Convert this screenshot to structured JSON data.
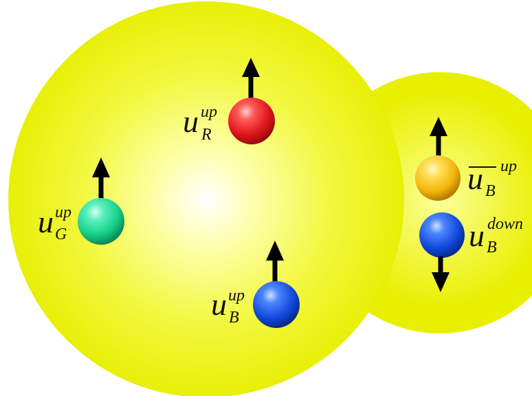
{
  "colors": {
    "sphere_edge": "#eef200",
    "sphere_center": "#ffffff",
    "arrow": "#000000",
    "quark_red": "#e8171b",
    "quark_green": "#1fd98e",
    "quark_blue": "#1456e6",
    "antiquark_yellow": "#f5c10d"
  },
  "quarks": {
    "red": {
      "symbol": "u",
      "spin": "up",
      "color_label": "R"
    },
    "green": {
      "symbol": "u",
      "spin": "up",
      "color_label": "G"
    },
    "blue": {
      "symbol": "u",
      "spin": "up",
      "color_label": "B"
    },
    "anti_blue": {
      "symbol": "u",
      "spin": "up",
      "color_label": "B",
      "overline": true
    },
    "blue_down": {
      "symbol": "u",
      "spin": "down",
      "color_label": "B"
    }
  }
}
